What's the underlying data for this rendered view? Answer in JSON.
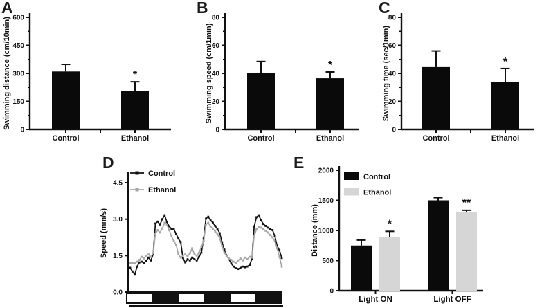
{
  "figure": {
    "background": "#ffffff",
    "text_color": "#111111"
  },
  "chart_data": [
    {
      "panel": "A",
      "type": "bar",
      "title": "",
      "categories": [
        "Control",
        "Ethanol"
      ],
      "values": [
        310,
        205
      ],
      "errors": [
        38,
        50
      ],
      "significance": [
        "",
        "*"
      ],
      "ylabel": "Swimming distance (cm/10min)",
      "ylim": [
        0,
        600
      ],
      "yticks": [
        "0",
        "150",
        "300",
        "450",
        "600"
      ],
      "bar_color": "#0a0a0a",
      "grid": "off",
      "error_bars": "upper"
    },
    {
      "panel": "B",
      "type": "bar",
      "title": "",
      "categories": [
        "Control",
        "Ethanol"
      ],
      "values": [
        40.5,
        36.5
      ],
      "errors": [
        8,
        4.5
      ],
      "significance": [
        "",
        "*"
      ],
      "ylabel": "Swimming speed (cm/1min)",
      "ylim": [
        0,
        80
      ],
      "yticks": [
        "0",
        "20",
        "40",
        "60",
        "80"
      ],
      "bar_color": "#0a0a0a",
      "grid": "off",
      "error_bars": "upper"
    },
    {
      "panel": "C",
      "type": "bar",
      "title": "",
      "categories": [
        "Control",
        "Ethanol"
      ],
      "values": [
        44.5,
        34
      ],
      "errors": [
        11.5,
        9.5
      ],
      "significance": [
        "",
        "*"
      ],
      "ylabel": "Swimming time (sec/1min)",
      "ylim": [
        0,
        80
      ],
      "yticks": [
        "0",
        "20",
        "40",
        "60",
        "80"
      ],
      "bar_color": "#0a0a0a",
      "grid": "off",
      "error_bars": "upper"
    },
    {
      "panel": "D",
      "type": "line",
      "title": "",
      "ylabel": "Speed (mm/s)",
      "ylim": [
        0,
        4.5
      ],
      "yticks": [
        "0.0",
        "1.5",
        "3.0",
        "4.5"
      ],
      "legend_position": "top-left",
      "grid": "off",
      "light_cycle": [
        "light",
        "dark",
        "light",
        "dark",
        "light",
        "dark"
      ],
      "series": [
        {
          "name": "Control",
          "color": "#111111",
          "values": [
            1.0,
            0.85,
            0.72,
            1.05,
            1.22,
            1.25,
            1.2,
            1.28,
            1.42,
            1.3,
            1.55,
            2.82,
            2.9,
            2.78,
            3.0,
            3.16,
            2.88,
            2.7,
            2.6,
            2.58,
            2.4,
            2.2,
            2.05,
            1.4,
            1.22,
            1.35,
            1.3,
            1.42,
            1.35,
            1.3,
            1.45,
            1.62,
            2.2,
            3.02,
            3.1,
            2.95,
            2.85,
            2.72,
            2.6,
            2.42,
            2.05,
            1.75,
            1.5,
            1.35,
            1.18,
            1.05,
            0.98,
            0.95,
            1.0,
            1.05,
            1.02,
            1.05,
            1.12,
            1.35,
            2.7,
            3.08,
            3.16,
            2.95,
            2.8,
            2.72,
            2.65,
            2.6,
            2.55,
            2.3,
            1.9,
            1.72,
            1.4
          ]
        },
        {
          "name": "Ethanol",
          "color": "#a6a6a6",
          "values": [
            1.2,
            1.2,
            1.18,
            1.25,
            1.32,
            1.45,
            1.38,
            1.5,
            1.55,
            1.45,
            1.6,
            2.4,
            2.55,
            2.45,
            2.62,
            2.85,
            2.78,
            2.55,
            2.3,
            2.1,
            1.95,
            1.55,
            1.42,
            1.5,
            1.55,
            1.48,
            1.6,
            1.8,
            1.55,
            1.5,
            1.62,
            1.85,
            2.1,
            2.78,
            2.85,
            2.7,
            2.6,
            2.5,
            2.38,
            2.2,
            1.9,
            1.62,
            1.48,
            1.38,
            1.32,
            1.25,
            1.2,
            1.3,
            1.38,
            1.3,
            1.42,
            1.35,
            1.45,
            1.42,
            2.3,
            2.58,
            2.68,
            2.65,
            2.6,
            2.52,
            2.45,
            2.35,
            2.25,
            2.1,
            1.8,
            1.45,
            1.05
          ]
        }
      ]
    },
    {
      "panel": "E",
      "type": "grouped-bar",
      "title": "",
      "categories": [
        "Light ON",
        "Light OFF"
      ],
      "series": [
        {
          "name": "Control",
          "color": "#0a0a0a",
          "values": [
            750,
            1500
          ],
          "errors": [
            90,
            45
          ],
          "significance": [
            "",
            ""
          ]
        },
        {
          "name": "Ethanol",
          "color": "#d6d6d6",
          "values": [
            890,
            1300
          ],
          "errors": [
            95,
            35
          ],
          "significance": [
            "*",
            "**"
          ]
        }
      ],
      "ylabel": "Distance (mm)",
      "ylim": [
        0,
        2000
      ],
      "yticks": [
        "0",
        "500",
        "1000",
        "1500",
        "2000"
      ],
      "legend_position": "top-left",
      "grid": "off",
      "error_bars": "upper"
    }
  ]
}
